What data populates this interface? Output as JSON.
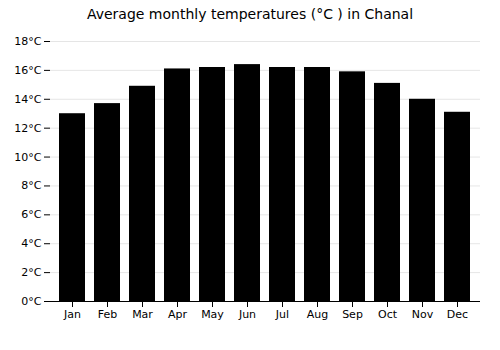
{
  "chart_data": {
    "type": "bar",
    "title": "Average monthly temperatures (°C ) in Chanal",
    "categories": [
      "Jan",
      "Feb",
      "Mar",
      "Apr",
      "May",
      "Jun",
      "Jul",
      "Aug",
      "Sep",
      "Oct",
      "Nov",
      "Dec"
    ],
    "values": [
      13.0,
      13.7,
      14.9,
      16.1,
      16.2,
      16.4,
      16.2,
      16.2,
      15.9,
      15.1,
      14.0,
      13.1
    ],
    "ylim": [
      0,
      18
    ],
    "yticks": [
      {
        "value": 0,
        "label": "0°C"
      },
      {
        "value": 2,
        "label": "2°C"
      },
      {
        "value": 4,
        "label": "4°C"
      },
      {
        "value": 6,
        "label": "6°C"
      },
      {
        "value": 8,
        "label": "8°C"
      },
      {
        "value": 10,
        "label": "10°C"
      },
      {
        "value": 12,
        "label": "12°C"
      },
      {
        "value": 14,
        "label": "14°C"
      },
      {
        "value": 16,
        "label": "16°C"
      },
      {
        "value": 18,
        "label": "18°C"
      }
    ],
    "grid": true
  }
}
